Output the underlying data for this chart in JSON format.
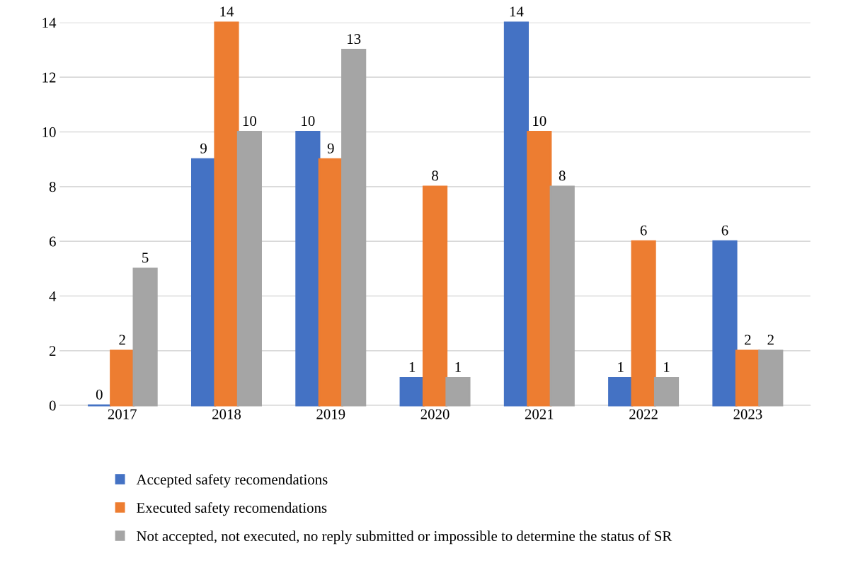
{
  "chart_data": {
    "type": "bar",
    "categories": [
      "2017",
      "2018",
      "2019",
      "2020",
      "2021",
      "2022",
      "2023"
    ],
    "series": [
      {
        "name": "Accepted safety recomendations",
        "color": "#4472c4",
        "values": [
          0,
          9,
          10,
          1,
          14,
          1,
          6
        ]
      },
      {
        "name": "Executed safety recomendations",
        "color": "#ed7d31",
        "values": [
          2,
          14,
          9,
          8,
          10,
          6,
          2
        ]
      },
      {
        "name": "Not accepted, not executed, no reply submitted or impossible to determine the status of SR",
        "color": "#a5a5a5",
        "values": [
          5,
          10,
          13,
          1,
          8,
          1,
          2
        ]
      }
    ],
    "ylim": [
      0,
      14
    ],
    "yticks": [
      0,
      2,
      4,
      6,
      8,
      10,
      12,
      14
    ],
    "grid": "y",
    "legend": "bottom",
    "data_labels": true
  }
}
